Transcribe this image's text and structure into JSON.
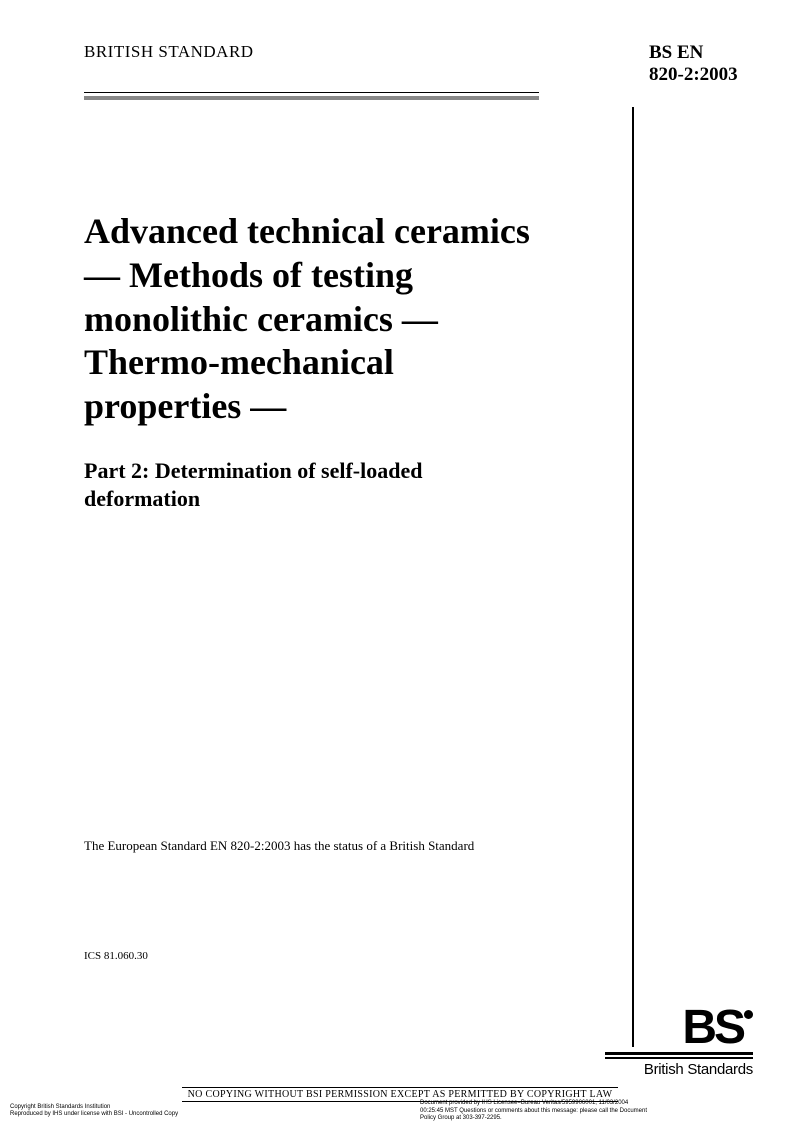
{
  "header": {
    "left": "BRITISH STANDARD",
    "right_line1": "BS EN",
    "right_line2": "820-2:2003"
  },
  "title": "Advanced technical ceramics — Methods of testing monolithic ceramics — Thermo-mechanical properties —",
  "subtitle": "Part 2: Determination of self-loaded deformation",
  "status_note": "The European Standard EN 820-2:2003 has the status of a British Standard",
  "ics": "ICS 81.060.30",
  "footer_notice": "NO COPYING WITHOUT BSI PERMISSION EXCEPT AS PERMITTED BY COPYRIGHT LAW",
  "fine_left_1": "Copyright British Standards Institution",
  "fine_left_2": "Reproduced by IHS under license with BSI - Uncontrolled Copy",
  "fine_right_1": "Document provided by IHS Licensee=Bureau Veritas/5959906001, 11/03/2004",
  "fine_right_2": "00:25:45 MST Questions or comments about this message: please call the Document",
  "fine_right_3": "Policy Group at 303-397-2295.",
  "logo": {
    "text": "BS",
    "tagline": "British Standards"
  },
  "colors": {
    "text": "#000000",
    "divider_grey": "#888888",
    "background": "#ffffff"
  },
  "typography": {
    "header_size": 17,
    "standard_code_size": 19,
    "title_size": 36,
    "subtitle_size": 22,
    "note_size": 13,
    "ics_size": 11,
    "footer_size": 10,
    "fine_size": 6
  }
}
